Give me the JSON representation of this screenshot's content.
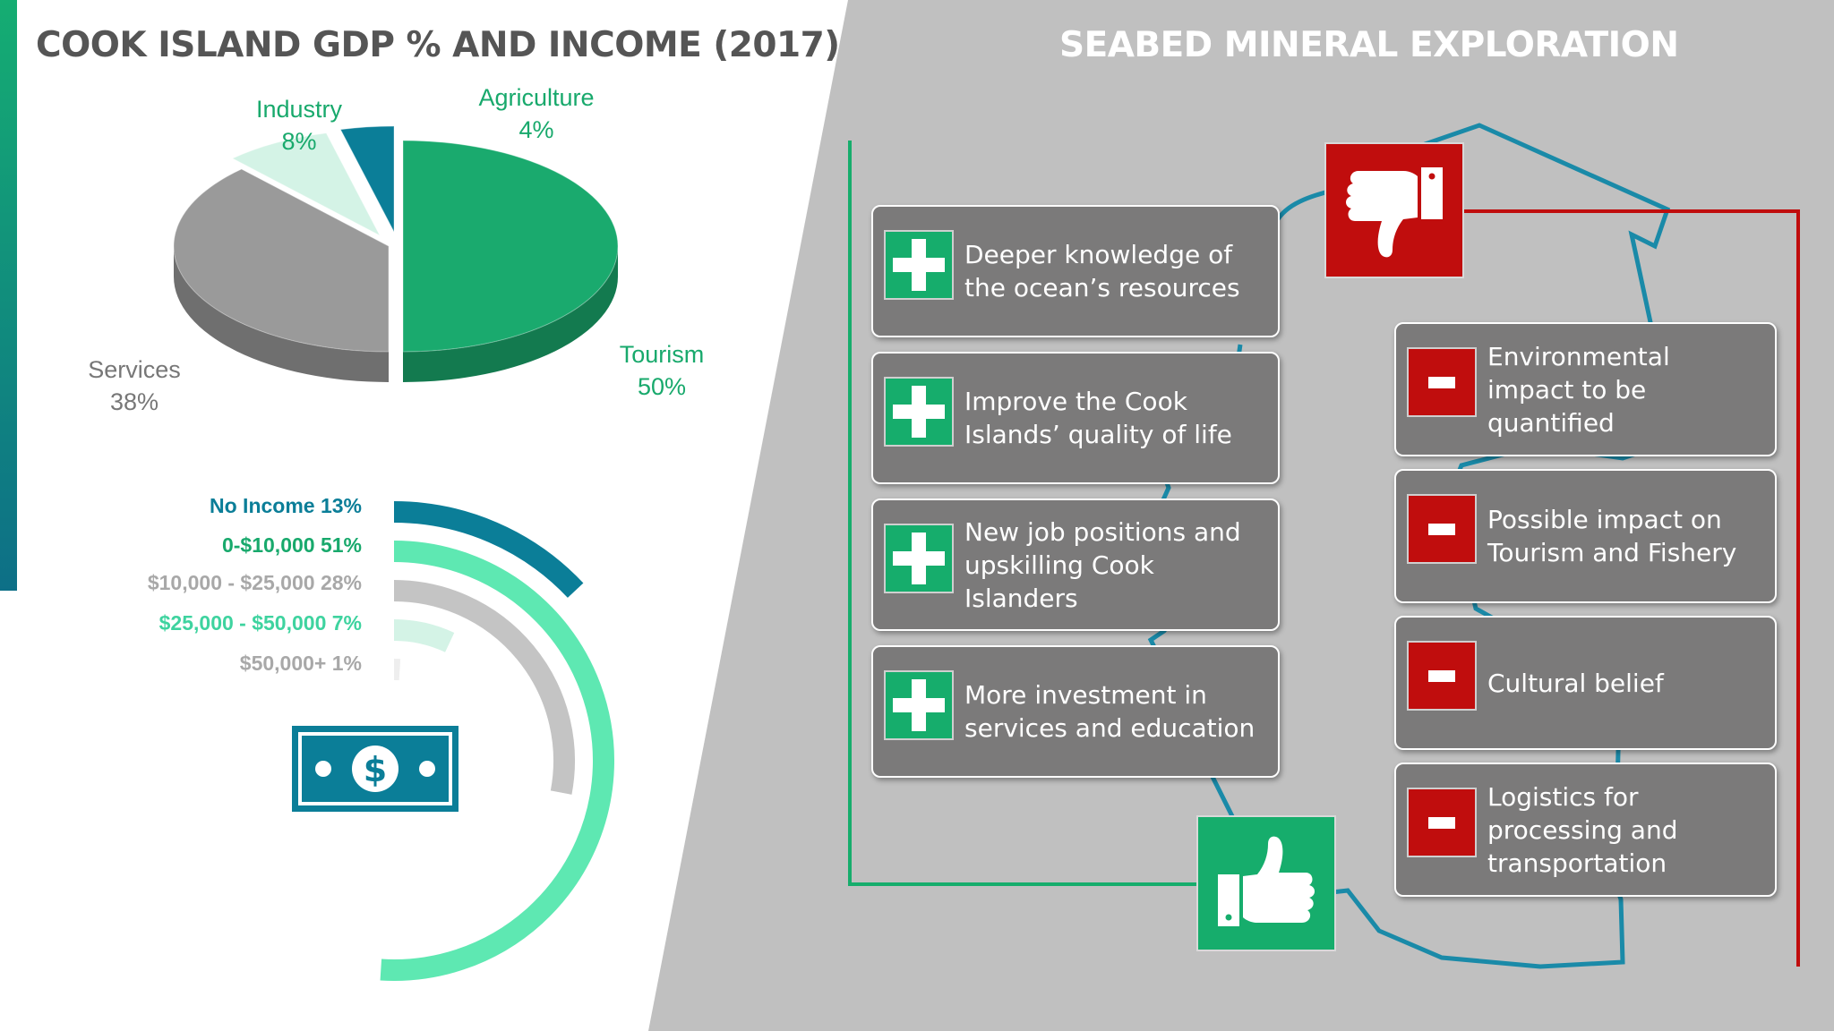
{
  "left_title": "COOK ISLAND GDP % AND INCOME (2017)",
  "right_title": "SEABED MINERAL EXPLORATION",
  "colors": {
    "tourism": "#1aaa6e",
    "services": "#9a9a9a",
    "industry": "#d4f3e6",
    "agriculture": "#0b7e98",
    "pro": "#16ad6c",
    "con": "#c00d0d",
    "card": "#7b7a7a",
    "map_outline": "#1a8aa8"
  },
  "chart_data": [
    {
      "type": "pie",
      "title": "",
      "slices": [
        {
          "name": "Tourism",
          "value": 50,
          "label": "Tourism",
          "pct": "50%",
          "color": "#1aaa6e"
        },
        {
          "name": "Services",
          "value": 38,
          "label": "Services",
          "pct": "38%",
          "color": "#9a9a9a"
        },
        {
          "name": "Industry",
          "value": 8,
          "label": "Industry",
          "pct": "8%",
          "color": "#d4f3e6"
        },
        {
          "name": "Agriculture",
          "value": 4,
          "label": "Agriculture",
          "pct": "4%",
          "color": "#0b7e98"
        }
      ]
    },
    {
      "type": "radial-bar",
      "title": "",
      "rings": [
        {
          "label": "No Income 13%",
          "category": "No Income",
          "value": 13,
          "color": "#0b7e98"
        },
        {
          "label": "0-$10,000 51%",
          "category": "0-$10,000",
          "value": 51,
          "color": "#5ee8b2"
        },
        {
          "label": "$10,000 - $25,000 28%",
          "category": "$10,000 - $25,000",
          "value": 28,
          "color": "#c4c4c4"
        },
        {
          "label": "$25,000 - $50,000 7%",
          "category": "$25,000 - $50,000",
          "value": 7,
          "color": "#d4f3e6"
        },
        {
          "label": "$50,000+ 1%",
          "category": "$50,000+",
          "value": 1,
          "color": "#eeeeee"
        }
      ],
      "label_colors": [
        "#0b7e98",
        "#18a96c",
        "#a8a8a8",
        "#3ed39f",
        "#a8a8a8"
      ]
    }
  ],
  "pros": [
    "Deeper knowledge of the ocean’s resources",
    "Improve the Cook Islands’ quality of life",
    "New job positions and upskilling Cook Islanders",
    "More investment in services and education"
  ],
  "cons": [
    "Environmental impact to be quantified",
    "Possible impact on Tourism and Fishery",
    "Cultural belief",
    "Logistics for processing and transportation"
  ],
  "icons": {
    "pro": "plus-icon",
    "con": "minus-icon",
    "thumbs_up": "thumbs-up-icon",
    "thumbs_down": "thumbs-down-icon",
    "money": "dollar-bill-icon"
  }
}
